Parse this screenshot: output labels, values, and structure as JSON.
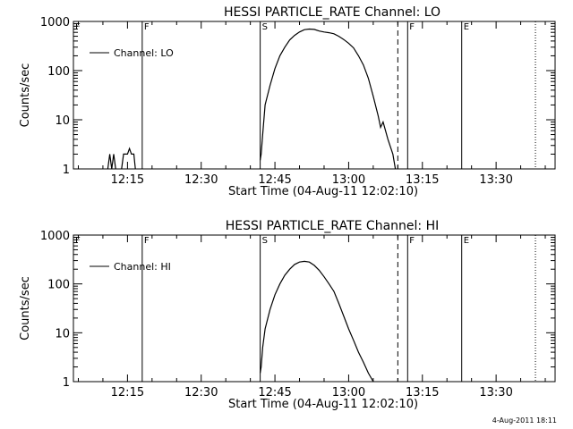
{
  "footer": {
    "timestamp": "4-Aug-2011 18:11"
  },
  "chart_data": [
    {
      "type": "line",
      "title": "HESSI PARTICLE_RATE Channel: LO",
      "xlabel": "Start Time (04-Aug-11 12:02:10)",
      "ylabel": "Counts/sec",
      "yscale": "log",
      "ylim": [
        1,
        1000
      ],
      "xlim": [
        "12:04",
        "13:42"
      ],
      "y_ticks": [
        {
          "value": 1,
          "label": "1"
        },
        {
          "value": 10,
          "label": "10"
        },
        {
          "value": 100,
          "label": "100"
        },
        {
          "value": 1000,
          "label": "1000"
        }
      ],
      "x_ticks": [
        {
          "value": "12:15",
          "label": "12:15"
        },
        {
          "value": "12:30",
          "label": "12:30"
        },
        {
          "value": "12:45",
          "label": "12:45"
        },
        {
          "value": "13:00",
          "label": "13:00"
        },
        {
          "value": "13:15",
          "label": "13:15"
        },
        {
          "value": "13:30",
          "label": "13:30"
        }
      ],
      "legend": {
        "label": "Channel: LO",
        "position": "top-left"
      },
      "markers": [
        {
          "x": "12:04",
          "label": "F",
          "style": "solid"
        },
        {
          "x": "12:18",
          "label": "F",
          "style": "solid"
        },
        {
          "x": "12:42",
          "label": "S",
          "style": "solid"
        },
        {
          "x": "13:10",
          "label": "",
          "style": "dashed"
        },
        {
          "x": "13:12",
          "label": "F",
          "style": "solid"
        },
        {
          "x": "13:23",
          "label": "E",
          "style": "solid"
        },
        {
          "x": "13:38",
          "label": "",
          "style": "dotted"
        }
      ],
      "series": [
        {
          "name": "Channel: LO",
          "segments": [
            [
              [
                "12:11",
                1
              ],
              [
                "12:11.4",
                2
              ],
              [
                "12:11.8",
                1
              ],
              [
                "12:12.2",
                2
              ],
              [
                "12:12.6",
                1
              ]
            ],
            [
              [
                "12:13.8",
                1
              ],
              [
                "12:14.2",
                2
              ],
              [
                "12:15",
                2
              ],
              [
                "12:15.4",
                2.6
              ],
              [
                "12:15.8",
                2
              ],
              [
                "12:16.3",
                2
              ],
              [
                "12:16.6",
                1
              ]
            ],
            [
              [
                "12:42",
                1.5
              ],
              [
                "12:42.2",
                2
              ],
              [
                "12:42.5",
                5
              ],
              [
                "12:43",
                20
              ],
              [
                "12:44",
                50
              ],
              [
                "12:45",
                110
              ],
              [
                "12:46",
                200
              ],
              [
                "12:47",
                300
              ],
              [
                "12:48",
                420
              ],
              [
                "12:49",
                520
              ],
              [
                "12:50",
                610
              ],
              [
                "12:51",
                680
              ],
              [
                "12:52",
                700
              ],
              [
                "12:53",
                690
              ],
              [
                "12:54",
                640
              ],
              [
                "12:55",
                610
              ],
              [
                "12:56",
                590
              ],
              [
                "12:57",
                560
              ],
              [
                "12:58",
                500
              ],
              [
                "12:59",
                430
              ],
              [
                "13:00",
                360
              ],
              [
                "13:01",
                290
              ],
              [
                "13:02",
                200
              ],
              [
                "13:03",
                130
              ],
              [
                "13:04",
                70
              ],
              [
                "13:05",
                30
              ],
              [
                "13:06",
                12
              ],
              [
                "13:06.5",
                7
              ],
              [
                "13:07",
                9
              ],
              [
                "13:07.5",
                6
              ],
              [
                "13:08",
                4
              ],
              [
                "13:09",
                2
              ],
              [
                "13:09.5",
                1
              ]
            ]
          ]
        }
      ]
    },
    {
      "type": "line",
      "title": "HESSI PARTICLE_RATE Channel: HI",
      "xlabel": "Start Time (04-Aug-11 12:02:10)",
      "ylabel": "Counts/sec",
      "yscale": "log",
      "ylim": [
        1,
        1000
      ],
      "xlim": [
        "12:04",
        "13:42"
      ],
      "y_ticks": [
        {
          "value": 1,
          "label": "1"
        },
        {
          "value": 10,
          "label": "10"
        },
        {
          "value": 100,
          "label": "100"
        },
        {
          "value": 1000,
          "label": "1000"
        }
      ],
      "x_ticks": [
        {
          "value": "12:15",
          "label": "12:15"
        },
        {
          "value": "12:30",
          "label": "12:30"
        },
        {
          "value": "12:45",
          "label": "12:45"
        },
        {
          "value": "13:00",
          "label": "13:00"
        },
        {
          "value": "13:15",
          "label": "13:15"
        },
        {
          "value": "13:30",
          "label": "13:30"
        }
      ],
      "legend": {
        "label": "Channel: HI",
        "position": "top-left"
      },
      "markers": [
        {
          "x": "12:04",
          "label": "F",
          "style": "solid"
        },
        {
          "x": "12:18",
          "label": "F",
          "style": "solid"
        },
        {
          "x": "12:42",
          "label": "S",
          "style": "solid"
        },
        {
          "x": "13:10",
          "label": "",
          "style": "dashed"
        },
        {
          "x": "13:12",
          "label": "F",
          "style": "solid"
        },
        {
          "x": "13:23",
          "label": "E",
          "style": "solid"
        },
        {
          "x": "13:38",
          "label": "",
          "style": "dotted"
        }
      ],
      "series": [
        {
          "name": "Channel: HI",
          "segments": [
            [
              [
                "12:42",
                1.5
              ],
              [
                "12:42.2",
                2
              ],
              [
                "12:42.5",
                5
              ],
              [
                "12:43",
                12
              ],
              [
                "12:44",
                30
              ],
              [
                "12:45",
                60
              ],
              [
                "12:46",
                100
              ],
              [
                "12:47",
                150
              ],
              [
                "12:48",
                200
              ],
              [
                "12:49",
                250
              ],
              [
                "12:50",
                280
              ],
              [
                "12:51",
                290
              ],
              [
                "12:52",
                280
              ],
              [
                "12:53",
                240
              ],
              [
                "12:54",
                190
              ],
              [
                "12:55",
                140
              ],
              [
                "12:56",
                100
              ],
              [
                "12:57",
                70
              ],
              [
                "12:58",
                40
              ],
              [
                "12:59",
                22
              ],
              [
                "13:00",
                12
              ],
              [
                "13:01",
                7
              ],
              [
                "13:02",
                4
              ],
              [
                "13:03",
                2.5
              ],
              [
                "13:04",
                1.5
              ],
              [
                "13:05",
                1
              ]
            ]
          ]
        }
      ]
    }
  ]
}
